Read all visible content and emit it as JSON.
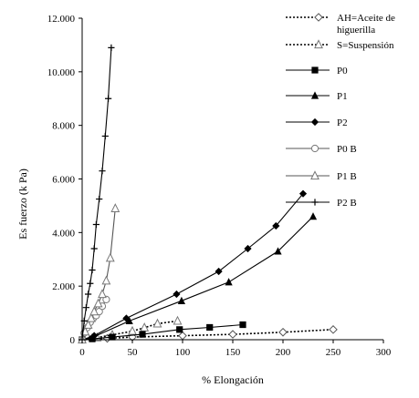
{
  "chart_data": {
    "type": "line",
    "title": "",
    "xlabel": "% Elongación",
    "ylabel": "Es fuerzo (k Pa)",
    "xlim": [
      0,
      300
    ],
    "ylim": [
      0,
      12000
    ],
    "x_ticks": [
      0,
      50,
      100,
      150,
      200,
      250,
      300
    ],
    "y_ticks": [
      0,
      2000,
      4000,
      6000,
      8000,
      10000,
      12000
    ],
    "x_tick_labels": [
      "0",
      "50",
      "100",
      "150",
      "200",
      "250",
      "300"
    ],
    "y_tick_labels": [
      "0",
      "2.000",
      "4.000",
      "6.000",
      "8.000",
      "10.000",
      "12.000"
    ],
    "grid": false,
    "legend_position": "right",
    "series": [
      {
        "name": "AH=Aceite de higuerilla",
        "marker": "diamond-open",
        "line": "dotted",
        "x": [
          0,
          25,
          50,
          100,
          150,
          200,
          250
        ],
        "y": [
          0,
          50,
          100,
          150,
          200,
          280,
          380
        ]
      },
      {
        "name": "S=Suspensión",
        "marker": "triangle-open",
        "line": "dotted",
        "x": [
          0,
          15,
          30,
          50,
          62,
          75,
          95
        ],
        "y": [
          0,
          80,
          180,
          320,
          450,
          600,
          700
        ]
      },
      {
        "name": "P0",
        "marker": "square",
        "line": "solid",
        "x": [
          0,
          10,
          30,
          60,
          97,
          127,
          160
        ],
        "y": [
          0,
          30,
          100,
          200,
          380,
          460,
          560
        ]
      },
      {
        "name": "P1",
        "marker": "triangle",
        "line": "solid",
        "x": [
          0,
          10,
          47,
          99,
          146,
          195,
          230
        ],
        "y": [
          0,
          80,
          700,
          1450,
          2150,
          3300,
          4600
        ]
      },
      {
        "name": "P2",
        "marker": "diamond",
        "line": "solid",
        "x": [
          0,
          12,
          44,
          94,
          136,
          165,
          193,
          220
        ],
        "y": [
          0,
          150,
          800,
          1700,
          2550,
          3400,
          4250,
          5450
        ]
      },
      {
        "name": "P0 B",
        "marker": "circle-open",
        "line": "solid",
        "x": [
          0,
          2,
          5,
          8,
          11,
          14,
          17,
          20,
          24
        ],
        "y": [
          0,
          250,
          450,
          650,
          800,
          900,
          1050,
          1250,
          1500
        ]
      },
      {
        "name": "P1 B",
        "marker": "triangle-open",
        "line": "solid",
        "x": [
          0,
          3,
          6,
          9,
          12,
          16,
          20,
          24,
          28,
          33
        ],
        "y": [
          0,
          300,
          550,
          800,
          1050,
          1350,
          1700,
          2200,
          3050,
          4900
        ]
      },
      {
        "name": "P2 B",
        "marker": "plus",
        "line": "solid",
        "x": [
          0,
          2,
          4,
          6,
          8,
          10,
          12,
          14,
          17,
          20,
          23,
          26,
          29
        ],
        "y": [
          0,
          700,
          1200,
          1700,
          2100,
          2600,
          3400,
          4300,
          5250,
          6300,
          7600,
          9000,
          10900
        ]
      }
    ]
  }
}
